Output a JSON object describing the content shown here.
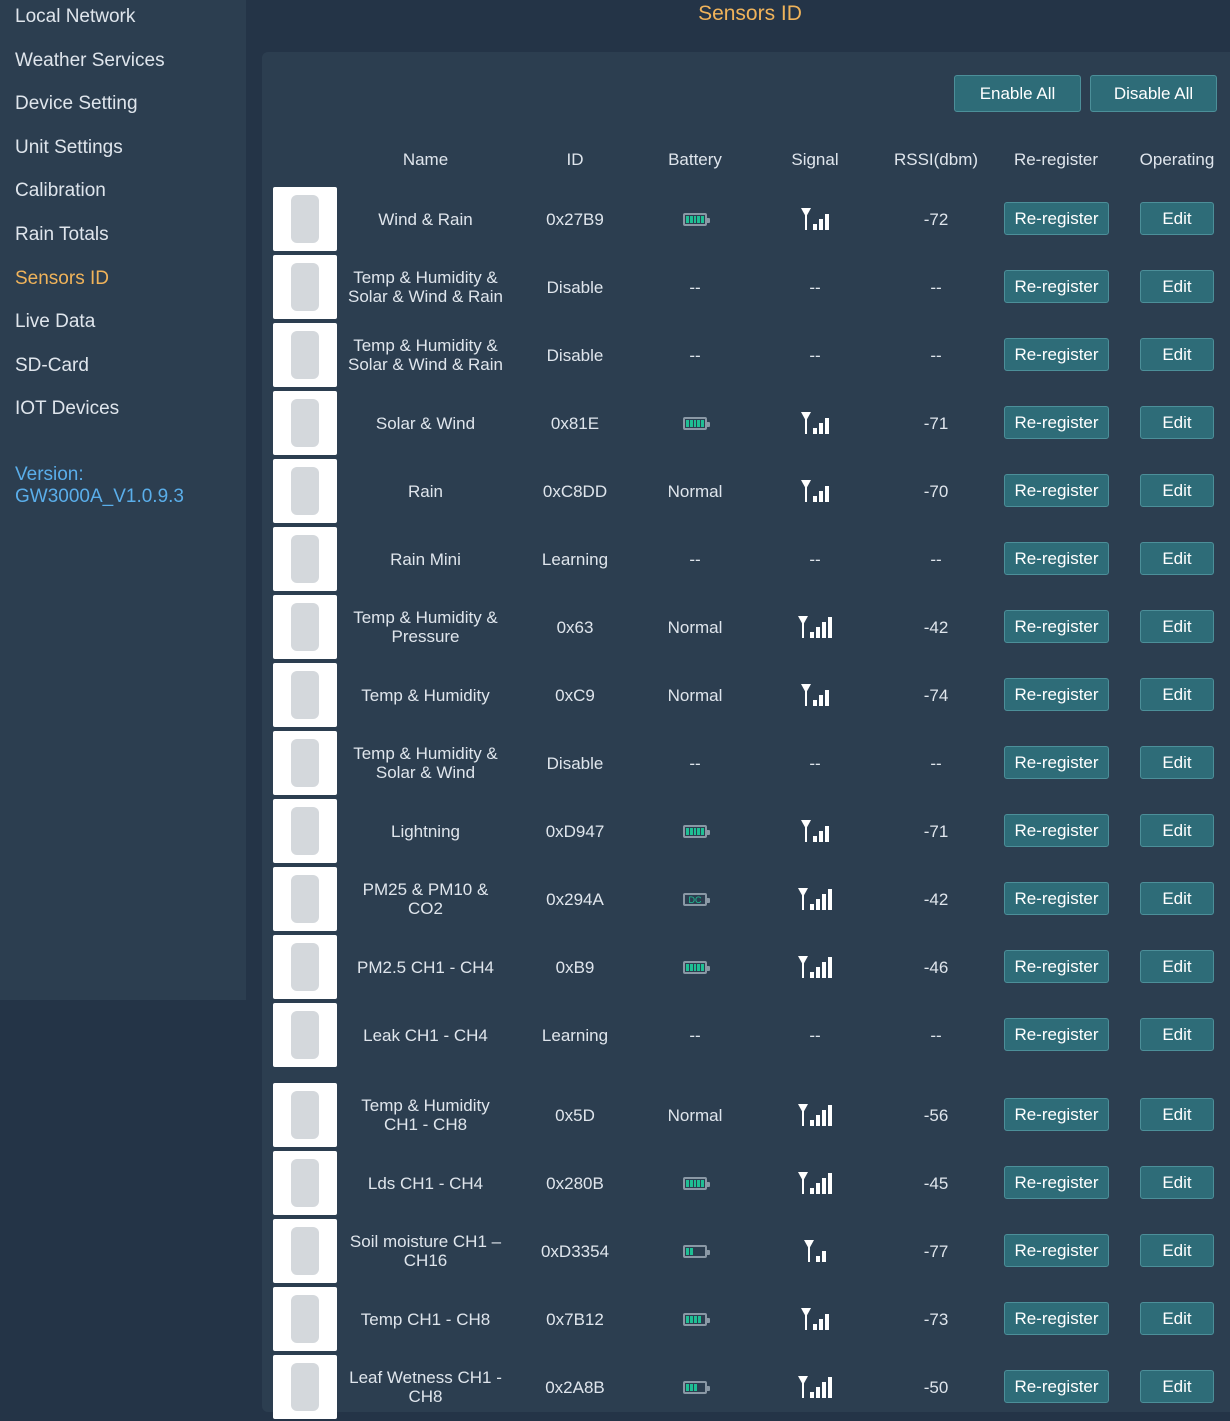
{
  "sidebar": {
    "items": [
      {
        "label": "Local Network",
        "active": false
      },
      {
        "label": "Weather Services",
        "active": false
      },
      {
        "label": "Device Setting",
        "active": false
      },
      {
        "label": "Unit Settings",
        "active": false
      },
      {
        "label": "Calibration",
        "active": false
      },
      {
        "label": "Rain Totals",
        "active": false
      },
      {
        "label": "Sensors ID",
        "active": true
      },
      {
        "label": "Live Data",
        "active": false
      },
      {
        "label": "SD-Card",
        "active": false
      },
      {
        "label": "IOT Devices",
        "active": false
      }
    ],
    "version_label": "Version:",
    "version_value": "GW3000A_V1.0.9.3"
  },
  "page_title": "Sensors ID",
  "toolbar": {
    "enable_all": "Enable All",
    "disable_all": "Disable All"
  },
  "columns": [
    "Name",
    "ID",
    "Battery",
    "Signal",
    "RSSI(dbm)",
    "Re-register",
    "Operating"
  ],
  "colors": {
    "accent": "#f0b35a",
    "button": "#2e6c78",
    "battery": "#1fbf94",
    "version": "#5aaeea"
  },
  "rows": [
    {
      "name": "Wind & Rain",
      "id": "0x27B9",
      "battery": {
        "type": "level",
        "level": 5
      },
      "signal": 3,
      "rssi": "-72"
    },
    {
      "name": "Temp & Humidity & Solar & Wind & Rain",
      "id": "Disable",
      "battery": {
        "type": "text",
        "text": "--"
      },
      "signal": "--",
      "rssi": "--"
    },
    {
      "name": "Temp & Humidity & Solar & Wind & Rain",
      "id": "Disable",
      "battery": {
        "type": "text",
        "text": "--"
      },
      "signal": "--",
      "rssi": "--"
    },
    {
      "name": "Solar & Wind",
      "id": "0x81E",
      "battery": {
        "type": "level",
        "level": 5
      },
      "signal": 3,
      "rssi": "-71"
    },
    {
      "name": "Rain",
      "id": "0xC8DD",
      "battery": {
        "type": "text",
        "text": "Normal"
      },
      "signal": 3,
      "rssi": "-70"
    },
    {
      "name": "Rain Mini",
      "id": "Learning",
      "battery": {
        "type": "text",
        "text": "--"
      },
      "signal": "--",
      "rssi": "--"
    },
    {
      "name": "Temp & Humidity & Pressure",
      "id": "0x63",
      "battery": {
        "type": "text",
        "text": "Normal"
      },
      "signal": 4,
      "rssi": "-42"
    },
    {
      "name": "Temp & Humidity",
      "id": "0xC9",
      "battery": {
        "type": "text",
        "text": "Normal"
      },
      "signal": 3,
      "rssi": "-74"
    },
    {
      "name": "Temp & Humidity & Solar & Wind",
      "id": "Disable",
      "battery": {
        "type": "text",
        "text": "--"
      },
      "signal": "--",
      "rssi": "--"
    },
    {
      "name": "Lightning",
      "id": "0xD947",
      "battery": {
        "type": "level",
        "level": 5
      },
      "signal": 3,
      "rssi": "-71"
    },
    {
      "name": "PM25 & PM10 & CO2",
      "id": "0x294A",
      "battery": {
        "type": "dc",
        "text": "DC"
      },
      "signal": 4,
      "rssi": "-42"
    },
    {
      "name": "PM2.5 CH1 - CH4",
      "id": "0xB9",
      "battery": {
        "type": "level",
        "level": 5
      },
      "signal": 4,
      "rssi": "-46"
    },
    {
      "name": "Leak CH1 - CH4",
      "id": "Learning",
      "battery": {
        "type": "text",
        "text": "--"
      },
      "signal": "--",
      "rssi": "--"
    },
    {
      "name": "Temp & Humidity CH1 - CH8",
      "id": "0x5D",
      "battery": {
        "type": "text",
        "text": "Normal"
      },
      "signal": 4,
      "rssi": "-56"
    },
    {
      "name": "Lds CH1 - CH4",
      "id": "0x280B",
      "battery": {
        "type": "level",
        "level": 5
      },
      "signal": 4,
      "rssi": "-45"
    },
    {
      "name": "Soil moisture CH1 – CH16",
      "id": "0xD3354",
      "battery": {
        "type": "level",
        "level": 2
      },
      "signal": 2,
      "rssi": "-77"
    },
    {
      "name": "Temp CH1 - CH8",
      "id": "0x7B12",
      "battery": {
        "type": "level",
        "level": 4
      },
      "signal": 3,
      "rssi": "-73"
    },
    {
      "name": "Leaf Wetness CH1 - CH8",
      "id": "0x2A8B",
      "battery": {
        "type": "level",
        "level": 3
      },
      "signal": 4,
      "rssi": "-50"
    }
  ],
  "row_buttons": {
    "reregister": "Re-register",
    "edit": "Edit"
  }
}
